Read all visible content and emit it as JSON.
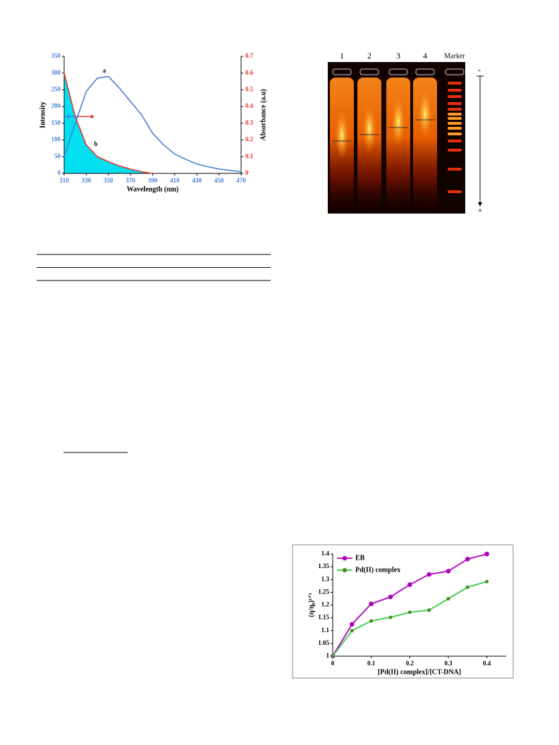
{
  "chart_data": [
    {
      "type": "line",
      "x": [
        310,
        320,
        330,
        340,
        350,
        360,
        370,
        380,
        390,
        400,
        410,
        420,
        430,
        440,
        450,
        460,
        470
      ],
      "xlim": [
        310,
        470
      ],
      "xticks": [
        310,
        330,
        350,
        370,
        390,
        410,
        430,
        450,
        470
      ],
      "ylim": [
        0,
        350
      ],
      "yticks": [
        0,
        50,
        100,
        150,
        200,
        250,
        300,
        350
      ],
      "y2lim": [
        0,
        0.7
      ],
      "y2ticks": [
        0,
        0.1,
        0.2,
        0.3,
        0.4,
        0.5,
        0.6,
        0.7
      ],
      "xlabel": "Wavelength (nm)",
      "ylabel": "Intensity",
      "y2label": "Absorbance (a.u)",
      "annotations": [
        "a",
        "b"
      ],
      "series": [
        {
          "name": "a",
          "color": "#4a7fd4",
          "values": [
            50,
            150,
            245,
            285,
            290,
            255,
            215,
            175,
            120,
            85,
            58,
            42,
            28,
            20,
            13,
            9,
            5
          ]
        },
        {
          "name": "b",
          "color": "#e8372c",
          "axis": "y2",
          "fill": "#00e0f0",
          "values": [
            0.6,
            0.34,
            0.17,
            0.1,
            0.07,
            0.045,
            0.025,
            0.01,
            0,
            null,
            null,
            null,
            null,
            null,
            null,
            null,
            null
          ]
        }
      ]
    },
    {
      "type": "line",
      "x": [
        0,
        0.05,
        0.1,
        0.15,
        0.2,
        0.25,
        0.3,
        0.35,
        0.4
      ],
      "xlim": [
        0,
        0.45
      ],
      "xticks": [
        0,
        0.1,
        0.2,
        0.3,
        0.4
      ],
      "ylim": [
        1,
        1.4
      ],
      "yticks": [
        1,
        1.05,
        1.1,
        1.15,
        1.2,
        1.25,
        1.3,
        1.35,
        1.4
      ],
      "xlabel": "[Pd(II) complex]/[CT-DNA]",
      "ylabel": "(η/η₀)¹ᐟ³",
      "legend": "upper left",
      "markers": true,
      "series": [
        {
          "name": "EB",
          "color": "#b000c0",
          "values": [
            1,
            1.125,
            1.205,
            1.232,
            1.28,
            1.32,
            1.333,
            1.38,
            1.4
          ]
        },
        {
          "name": "Pd(II) complex",
          "color": "#33cc44",
          "values": [
            1,
            1.1,
            1.138,
            1.152,
            1.172,
            1.18,
            1.225,
            1.27,
            1.292
          ]
        }
      ]
    }
  ],
  "gel_image": {
    "lanes": [
      "1",
      "2",
      "3",
      "4",
      "Marker"
    ],
    "polarity": [
      "-",
      "+"
    ]
  }
}
